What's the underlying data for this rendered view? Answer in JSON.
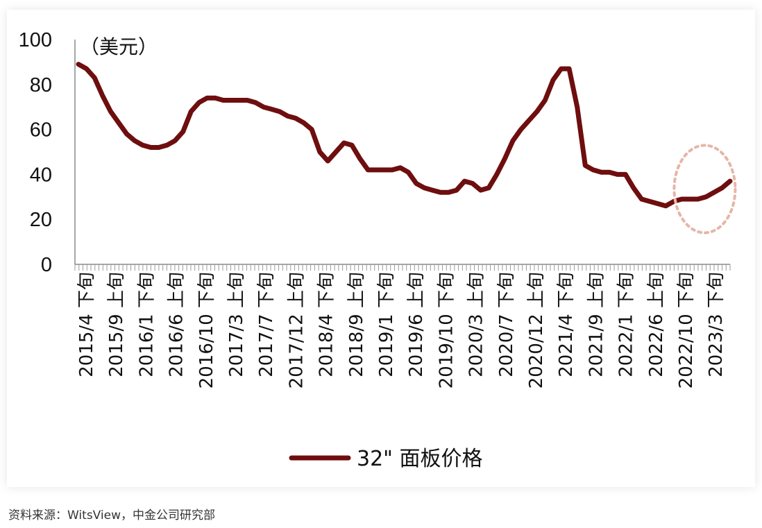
{
  "chart_data": {
    "type": "line",
    "unit_label": "（美元）",
    "ylim": [
      0,
      100
    ],
    "y_ticks": [
      0,
      20,
      40,
      60,
      80,
      100
    ],
    "grid": false,
    "legend_position": "bottom-center",
    "x_labels": [
      "2015/4 下旬",
      "2015/9 上旬",
      "2016/1 下旬",
      "2016/6 上旬",
      "2016/10 下旬",
      "2017/3 上旬",
      "2017/7 下旬",
      "2017/12 上旬",
      "2018/4 下旬",
      "2018/9 上旬",
      "2019/1 下旬",
      "2019/6 上旬",
      "2019/10 下旬",
      "2020/3 上旬",
      "2020/7 下旬",
      "2020/12 上旬",
      "2021/4 下旬",
      "2021/9 上旬",
      "2022/1 下旬",
      "2022/6 上旬",
      "2022/10 下旬",
      "2023/3 下旬"
    ],
    "series": [
      {
        "name": "32\" 面板价格",
        "color": "#6e0e0e",
        "values": [
          89,
          87,
          83,
          75,
          68,
          63,
          58,
          55,
          53,
          52,
          52,
          53,
          55,
          59,
          68,
          72,
          74,
          74,
          73,
          73,
          73,
          73,
          72,
          70,
          69,
          68,
          66,
          65,
          63,
          60,
          50,
          46,
          50,
          54,
          53,
          47,
          42,
          42,
          42,
          42,
          43,
          41,
          36,
          34,
          33,
          32,
          32,
          33,
          37,
          36,
          33,
          34,
          40,
          47,
          55,
          60,
          64,
          68,
          73,
          82,
          87,
          87,
          70,
          44,
          42,
          41,
          41,
          40,
          40,
          34,
          29,
          28,
          27,
          26,
          28,
          29,
          29,
          29,
          30,
          32,
          34,
          37
        ]
      }
    ],
    "highlight_shape": "dashed-ellipse",
    "highlight_color": "#e5b6a8"
  },
  "footer": {
    "source": "资料来源：WitsView，中金公司研究部"
  }
}
